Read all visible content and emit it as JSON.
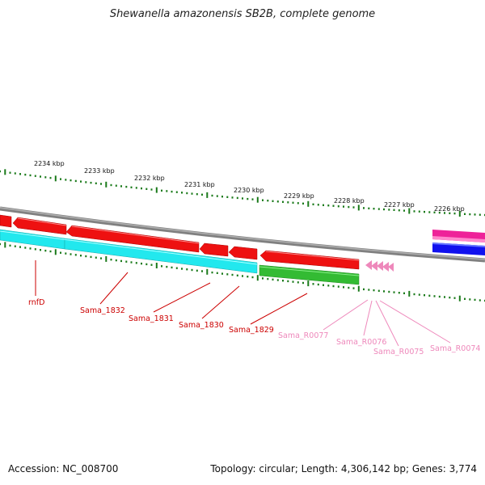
{
  "header": {
    "title": "Shewanella amazonensis SB2B, complete genome"
  },
  "footer": {
    "accession": "Accession: NC_008700",
    "summary": "Topology: circular; Length: 4,306,142 bp; Genes: 3,774"
  },
  "colors": {
    "backbone": "#808080",
    "tick": "#1a7a1a",
    "forward_red": "#ee1111",
    "cyan": "#22e8ee",
    "green": "#33bb33",
    "pink": "#ee88bb",
    "magenta": "#ee2299",
    "blue": "#1111ee",
    "label_red": "#cc0000",
    "label_pink": "#ee88bb"
  },
  "scale": {
    "unit": "kbp",
    "major_ticks": [
      {
        "label": "2234 kbp"
      },
      {
        "label": "2233 kbp"
      },
      {
        "label": "2232 kbp"
      },
      {
        "label": "2231 kbp"
      },
      {
        "label": "2230 kbp"
      },
      {
        "label": "2229 kbp"
      },
      {
        "label": "2228 kbp"
      },
      {
        "label": "2227 kbp"
      },
      {
        "label": "2226 kbp"
      }
    ]
  },
  "features": {
    "gene_labels": [
      {
        "text": "rnfD",
        "color": "label_red"
      },
      {
        "text": "Sama_1832",
        "color": "label_red"
      },
      {
        "text": "Sama_1831",
        "color": "label_red"
      },
      {
        "text": "Sama_1830",
        "color": "label_red"
      },
      {
        "text": "Sama_1829",
        "color": "label_red"
      },
      {
        "text": "Sama_R0077",
        "color": "label_pink"
      },
      {
        "text": "Sama_R0076",
        "color": "label_pink"
      },
      {
        "text": "Sama_R0075",
        "color": "label_pink"
      },
      {
        "text": "Sama_R0074",
        "color": "label_pink"
      }
    ]
  }
}
